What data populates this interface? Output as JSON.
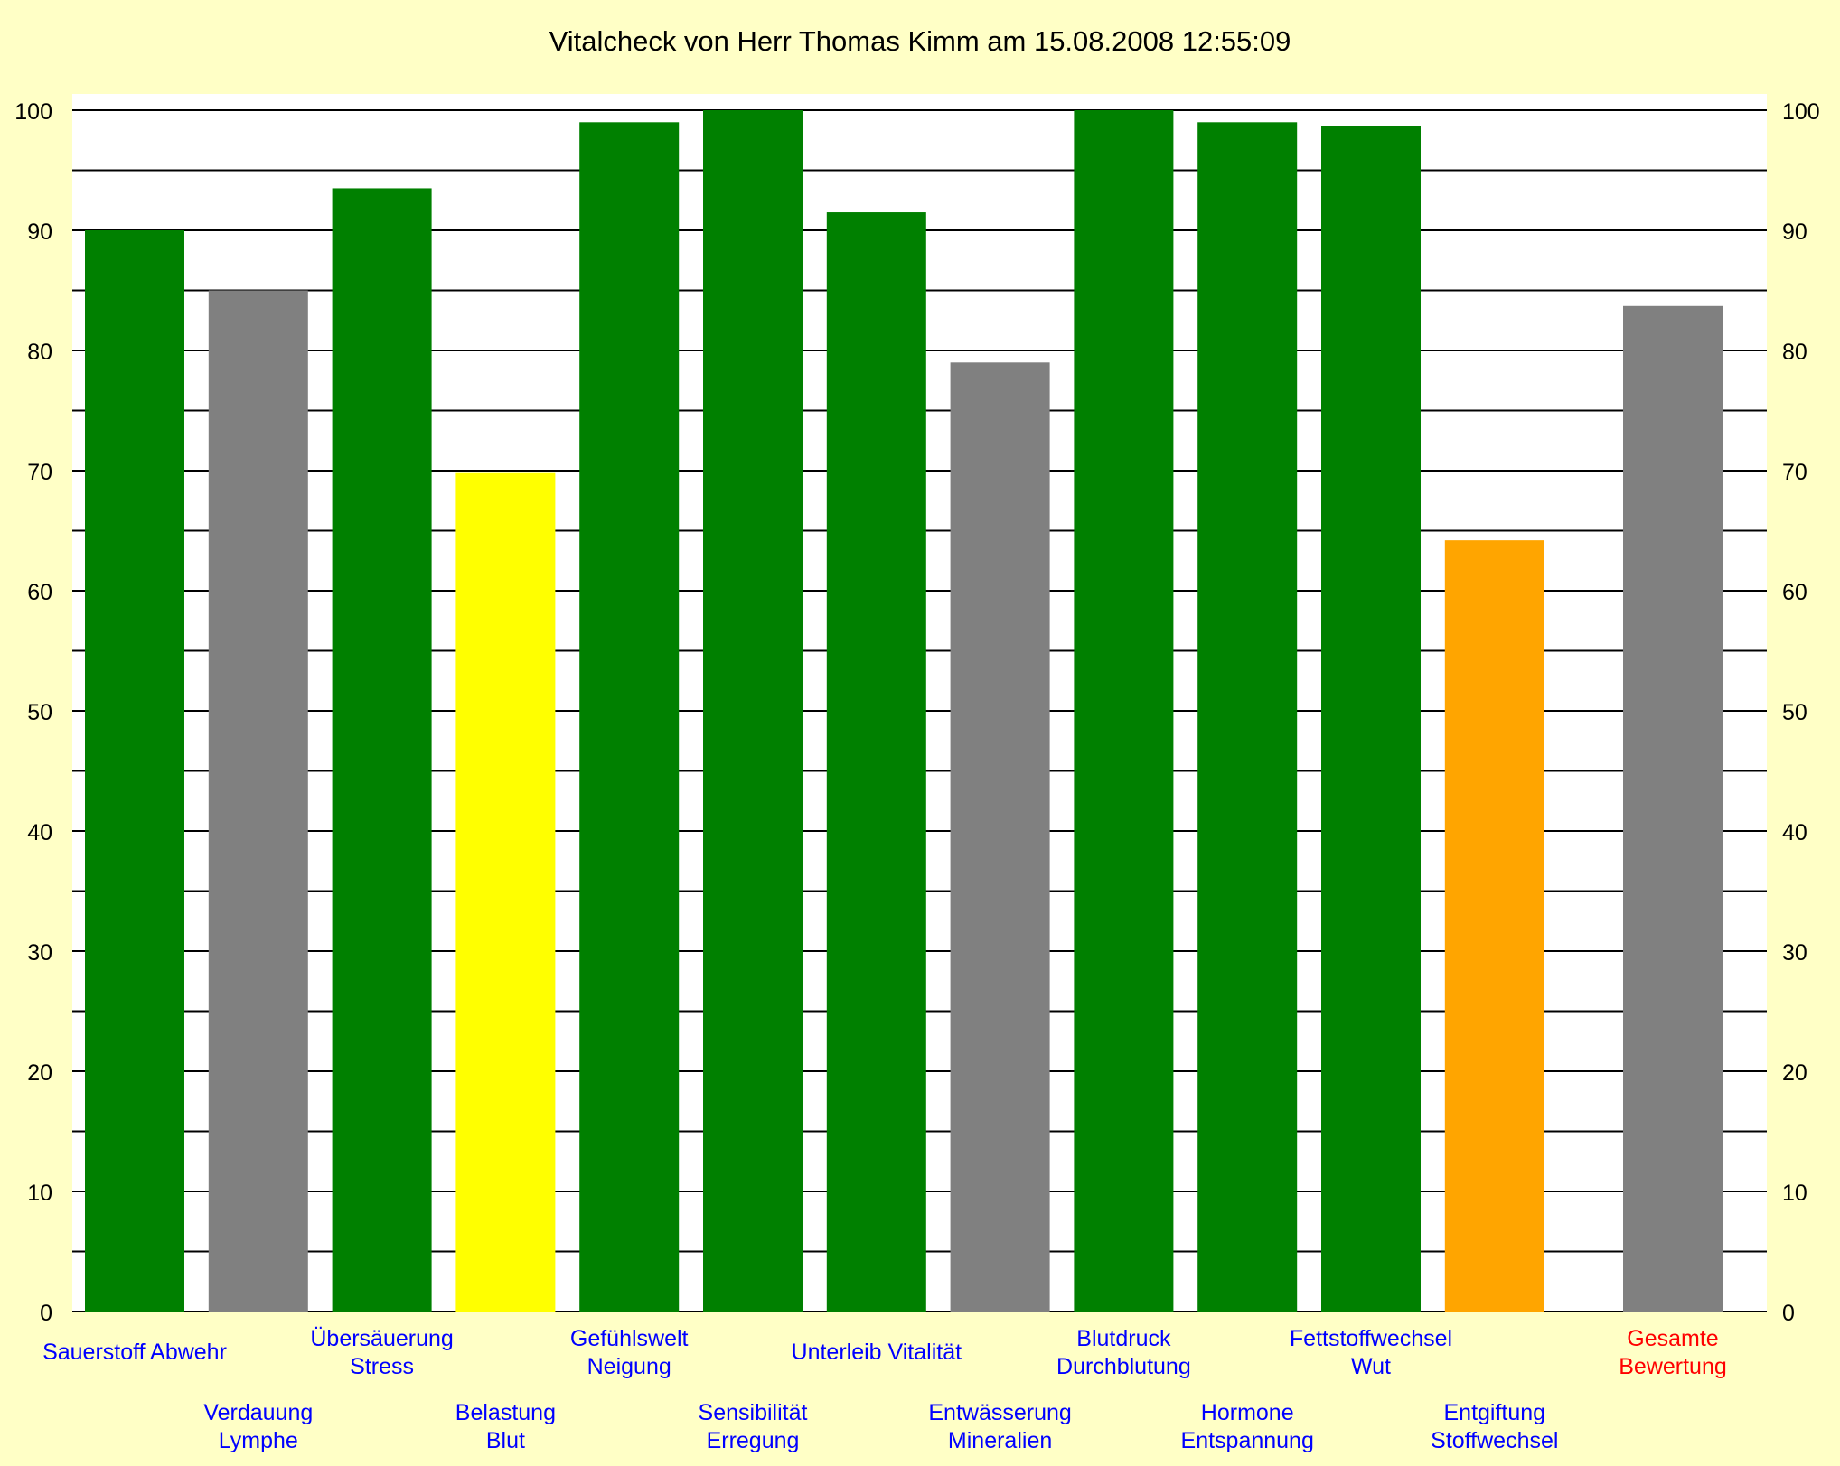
{
  "chart_data": {
    "type": "bar",
    "title": "Vitalcheck von Herr Thomas Kimm am 15.08.2008 12:55:09",
    "ylim": [
      0,
      100
    ],
    "y_ticks": [
      0,
      10,
      20,
      30,
      40,
      50,
      60,
      70,
      80,
      90,
      100
    ],
    "right_axis_ticks": true,
    "grid": true,
    "colors": {
      "background": "#ffffc6",
      "plot_area": "#ffffff",
      "green": "#008000",
      "gray": "#808080",
      "yellow": "#ffff00",
      "orange": "#ffa500",
      "label_blue": "#0000ff",
      "label_red": "#ff0000"
    },
    "categories": [
      {
        "lines": [
          "Sauerstoff Abwehr"
        ],
        "value": 90,
        "color": "#008000",
        "label_color": "#0000ff"
      },
      {
        "lines": [
          "Verdauung",
          "Lymphe"
        ],
        "value": 85,
        "color": "#808080",
        "label_color": "#0000ff"
      },
      {
        "lines": [
          "Übersäuerung",
          "Stress"
        ],
        "value": 93.5,
        "color": "#008000",
        "label_color": "#0000ff"
      },
      {
        "lines": [
          "Belastung",
          "Blut"
        ],
        "value": 69.8,
        "color": "#ffff00",
        "label_color": "#0000ff"
      },
      {
        "lines": [
          "Gefühlswelt",
          "Neigung"
        ],
        "value": 99,
        "color": "#008000",
        "label_color": "#0000ff"
      },
      {
        "lines": [
          "Sensibilität",
          "Erregung"
        ],
        "value": 100,
        "color": "#008000",
        "label_color": "#0000ff"
      },
      {
        "lines": [
          "Unterleib Vitalität"
        ],
        "value": 91.5,
        "color": "#008000",
        "label_color": "#0000ff"
      },
      {
        "lines": [
          "Entwässerung",
          "Mineralien"
        ],
        "value": 79,
        "color": "#808080",
        "label_color": "#0000ff"
      },
      {
        "lines": [
          "Blutdruck",
          "Durchblutung"
        ],
        "value": 100,
        "color": "#008000",
        "label_color": "#0000ff"
      },
      {
        "lines": [
          "Hormone",
          "Entspannung"
        ],
        "value": 99,
        "color": "#008000",
        "label_color": "#0000ff"
      },
      {
        "lines": [
          "Fettstoffwechsel",
          "Wut"
        ],
        "value": 98.7,
        "color": "#008000",
        "label_color": "#0000ff"
      },
      {
        "lines": [
          "Entgiftung",
          "Stoffwechsel"
        ],
        "value": 64.2,
        "color": "#ffa500",
        "label_color": "#0000ff"
      },
      {
        "lines": [
          "Gesamte",
          "Bewertung"
        ],
        "value": 83.7,
        "color": "#808080",
        "label_color": "#ff0000"
      }
    ]
  }
}
